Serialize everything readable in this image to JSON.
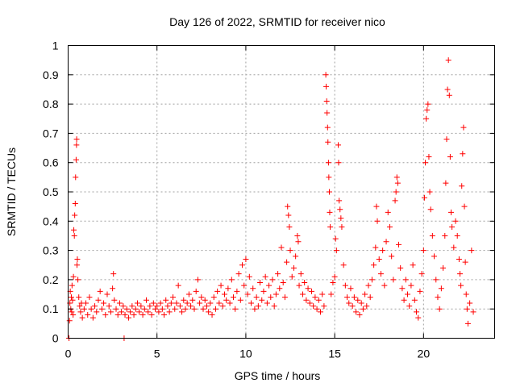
{
  "chart_data": {
    "type": "scatter",
    "title": "Day 126 of 2022, SRMTID for receiver nico",
    "xlabel": "GPS time / hours",
    "ylabel": "SRMTID / TECUs",
    "xlim": [
      0,
      24
    ],
    "ylim": [
      0,
      1
    ],
    "x_ticks": [
      0,
      5,
      10,
      15,
      20
    ],
    "x_tick_labels": [
      "0",
      "5",
      "10",
      "15",
      "20"
    ],
    "y_ticks": [
      0,
      0.1,
      0.2,
      0.3,
      0.4,
      0.5,
      0.6,
      0.7,
      0.8,
      0.9,
      1
    ],
    "y_tick_labels": [
      "0",
      "0.1",
      "0.2",
      "0.3",
      "0.4",
      "0.5",
      "0.6",
      "0.7",
      "0.8",
      "0.9",
      "1"
    ],
    "grid": true,
    "marker": "+",
    "color": "#ff0000",
    "series": [
      {
        "name": "SRMTID",
        "points": [
          [
            0.05,
            0.0
          ],
          [
            0.08,
            0.06
          ],
          [
            0.1,
            0.12
          ],
          [
            0.12,
            0.16
          ],
          [
            0.15,
            0.1
          ],
          [
            0.18,
            0.14
          ],
          [
            0.2,
            0.09
          ],
          [
            0.22,
            0.18
          ],
          [
            0.25,
            0.13
          ],
          [
            0.28,
            0.08
          ],
          [
            0.3,
            0.21
          ],
          [
            0.32,
            0.37
          ],
          [
            0.35,
            0.35
          ],
          [
            0.37,
            0.42
          ],
          [
            0.4,
            0.46
          ],
          [
            0.42,
            0.55
          ],
          [
            0.45,
            0.61
          ],
          [
            0.47,
            0.66
          ],
          [
            0.48,
            0.68
          ],
          [
            0.5,
            0.25
          ],
          [
            0.52,
            0.27
          ],
          [
            0.55,
            0.2
          ],
          [
            0.6,
            0.14
          ],
          [
            0.65,
            0.11
          ],
          [
            0.7,
            0.09
          ],
          [
            0.75,
            0.12
          ],
          [
            0.8,
            0.07
          ],
          [
            0.9,
            0.1
          ],
          [
            1.0,
            0.12
          ],
          [
            1.1,
            0.08
          ],
          [
            1.2,
            0.14
          ],
          [
            1.3,
            0.1
          ],
          [
            1.4,
            0.07
          ],
          [
            1.5,
            0.11
          ],
          [
            1.6,
            0.09
          ],
          [
            1.7,
            0.13
          ],
          [
            1.8,
            0.16
          ],
          [
            1.9,
            0.1
          ],
          [
            2.0,
            0.12
          ],
          [
            2.1,
            0.08
          ],
          [
            2.2,
            0.15
          ],
          [
            2.3,
            0.11
          ],
          [
            2.4,
            0.09
          ],
          [
            2.5,
            0.17
          ],
          [
            2.55,
            0.22
          ],
          [
            2.6,
            0.13
          ],
          [
            2.7,
            0.1
          ],
          [
            2.8,
            0.08
          ],
          [
            2.9,
            0.12
          ],
          [
            3.0,
            0.09
          ],
          [
            3.1,
            0.11
          ],
          [
            3.15,
            0.0
          ],
          [
            3.2,
            0.08
          ],
          [
            3.3,
            0.1
          ],
          [
            3.4,
            0.07
          ],
          [
            3.5,
            0.09
          ],
          [
            3.6,
            0.11
          ],
          [
            3.7,
            0.08
          ],
          [
            3.8,
            0.1
          ],
          [
            3.9,
            0.12
          ],
          [
            4.0,
            0.09
          ],
          [
            4.1,
            0.11
          ],
          [
            4.2,
            0.08
          ],
          [
            4.3,
            0.1
          ],
          [
            4.4,
            0.13
          ],
          [
            4.5,
            0.09
          ],
          [
            4.6,
            0.11
          ],
          [
            4.7,
            0.08
          ],
          [
            4.8,
            0.12
          ],
          [
            4.9,
            0.1
          ],
          [
            5.0,
            0.11
          ],
          [
            5.1,
            0.09
          ],
          [
            5.2,
            0.12
          ],
          [
            5.3,
            0.1
          ],
          [
            5.4,
            0.08
          ],
          [
            5.5,
            0.13
          ],
          [
            5.6,
            0.11
          ],
          [
            5.7,
            0.09
          ],
          [
            5.8,
            0.12
          ],
          [
            5.9,
            0.14
          ],
          [
            6.0,
            0.1
          ],
          [
            6.1,
            0.12
          ],
          [
            6.2,
            0.18
          ],
          [
            6.3,
            0.11
          ],
          [
            6.4,
            0.09
          ],
          [
            6.5,
            0.13
          ],
          [
            6.6,
            0.1
          ],
          [
            6.7,
            0.12
          ],
          [
            6.8,
            0.15
          ],
          [
            6.9,
            0.11
          ],
          [
            7.0,
            0.13
          ],
          [
            7.1,
            0.1
          ],
          [
            7.2,
            0.16
          ],
          [
            7.3,
            0.2
          ],
          [
            7.4,
            0.12
          ],
          [
            7.5,
            0.14
          ],
          [
            7.6,
            0.1
          ],
          [
            7.7,
            0.13
          ],
          [
            7.8,
            0.11
          ],
          [
            7.9,
            0.09
          ],
          [
            8.0,
            0.12
          ],
          [
            8.1,
            0.08
          ],
          [
            8.2,
            0.14
          ],
          [
            8.3,
            0.1
          ],
          [
            8.4,
            0.16
          ],
          [
            8.5,
            0.12
          ],
          [
            8.6,
            0.18
          ],
          [
            8.7,
            0.11
          ],
          [
            8.8,
            0.15
          ],
          [
            8.9,
            0.13
          ],
          [
            9.0,
            0.17
          ],
          [
            9.1,
            0.12
          ],
          [
            9.2,
            0.2
          ],
          [
            9.3,
            0.14
          ],
          [
            9.4,
            0.1
          ],
          [
            9.5,
            0.16
          ],
          [
            9.6,
            0.22
          ],
          [
            9.7,
            0.13
          ],
          [
            9.8,
            0.25
          ],
          [
            9.9,
            0.18
          ],
          [
            10.0,
            0.27
          ],
          [
            10.1,
            0.15
          ],
          [
            10.2,
            0.21
          ],
          [
            10.3,
            0.12
          ],
          [
            10.4,
            0.17
          ],
          [
            10.5,
            0.1
          ],
          [
            10.6,
            0.14
          ],
          [
            10.7,
            0.11
          ],
          [
            10.8,
            0.19
          ],
          [
            10.9,
            0.13
          ],
          [
            11.0,
            0.16
          ],
          [
            11.1,
            0.21
          ],
          [
            11.2,
            0.12
          ],
          [
            11.3,
            0.18
          ],
          [
            11.4,
            0.14
          ],
          [
            11.5,
            0.2
          ],
          [
            11.6,
            0.11
          ],
          [
            11.7,
            0.15
          ],
          [
            11.8,
            0.22
          ],
          [
            11.9,
            0.17
          ],
          [
            12.0,
            0.31
          ],
          [
            12.1,
            0.19
          ],
          [
            12.2,
            0.14
          ],
          [
            12.3,
            0.26
          ],
          [
            12.35,
            0.45
          ],
          [
            12.4,
            0.42
          ],
          [
            12.45,
            0.38
          ],
          [
            12.5,
            0.3
          ],
          [
            12.6,
            0.21
          ],
          [
            12.7,
            0.24
          ],
          [
            12.8,
            0.28
          ],
          [
            12.9,
            0.35
          ],
          [
            12.95,
            0.33
          ],
          [
            13.0,
            0.18
          ],
          [
            13.1,
            0.22
          ],
          [
            13.2,
            0.15
          ],
          [
            13.3,
            0.19
          ],
          [
            13.4,
            0.13
          ],
          [
            13.5,
            0.17
          ],
          [
            13.6,
            0.12
          ],
          [
            13.7,
            0.16
          ],
          [
            13.8,
            0.11
          ],
          [
            13.9,
            0.14
          ],
          [
            14.0,
            0.1
          ],
          [
            14.1,
            0.13
          ],
          [
            14.2,
            0.09
          ],
          [
            14.3,
            0.15
          ],
          [
            14.4,
            0.11
          ],
          [
            14.5,
            0.9
          ],
          [
            14.52,
            0.86
          ],
          [
            14.55,
            0.81
          ],
          [
            14.57,
            0.77
          ],
          [
            14.6,
            0.72
          ],
          [
            14.62,
            0.67
          ],
          [
            14.65,
            0.6
          ],
          [
            14.67,
            0.55
          ],
          [
            14.7,
            0.5
          ],
          [
            14.72,
            0.43
          ],
          [
            14.75,
            0.38
          ],
          [
            14.8,
            0.15
          ],
          [
            14.9,
            0.19
          ],
          [
            15.0,
            0.21
          ],
          [
            15.05,
            0.34
          ],
          [
            15.1,
            0.3
          ],
          [
            15.2,
            0.66
          ],
          [
            15.22,
            0.6
          ],
          [
            15.25,
            0.47
          ],
          [
            15.3,
            0.44
          ],
          [
            15.35,
            0.41
          ],
          [
            15.4,
            0.38
          ],
          [
            15.5,
            0.25
          ],
          [
            15.6,
            0.18
          ],
          [
            15.7,
            0.14
          ],
          [
            15.8,
            0.12
          ],
          [
            15.9,
            0.17
          ],
          [
            16.0,
            0.11
          ],
          [
            16.1,
            0.14
          ],
          [
            16.2,
            0.09
          ],
          [
            16.3,
            0.13
          ],
          [
            16.4,
            0.08
          ],
          [
            16.5,
            0.12
          ],
          [
            16.6,
            0.1
          ],
          [
            16.7,
            0.15
          ],
          [
            16.8,
            0.11
          ],
          [
            16.9,
            0.18
          ],
          [
            17.0,
            0.14
          ],
          [
            17.1,
            0.2
          ],
          [
            17.2,
            0.25
          ],
          [
            17.3,
            0.31
          ],
          [
            17.35,
            0.45
          ],
          [
            17.4,
            0.4
          ],
          [
            17.5,
            0.27
          ],
          [
            17.6,
            0.22
          ],
          [
            17.7,
            0.3
          ],
          [
            17.8,
            0.18
          ],
          [
            17.9,
            0.33
          ],
          [
            18.0,
            0.43
          ],
          [
            18.1,
            0.38
          ],
          [
            18.2,
            0.28
          ],
          [
            18.3,
            0.2
          ],
          [
            18.4,
            0.47
          ],
          [
            18.45,
            0.5
          ],
          [
            18.5,
            0.55
          ],
          [
            18.55,
            0.53
          ],
          [
            18.6,
            0.32
          ],
          [
            18.7,
            0.24
          ],
          [
            18.8,
            0.17
          ],
          [
            18.9,
            0.13
          ],
          [
            19.0,
            0.2
          ],
          [
            19.1,
            0.15
          ],
          [
            19.2,
            0.11
          ],
          [
            19.3,
            0.18
          ],
          [
            19.4,
            0.25
          ],
          [
            19.5,
            0.13
          ],
          [
            19.6,
            0.09
          ],
          [
            19.7,
            0.07
          ],
          [
            19.8,
            0.16
          ],
          [
            19.9,
            0.22
          ],
          [
            20.0,
            0.3
          ],
          [
            20.05,
            0.48
          ],
          [
            20.1,
            0.6
          ],
          [
            20.15,
            0.75
          ],
          [
            20.2,
            0.78
          ],
          [
            20.25,
            0.8
          ],
          [
            20.3,
            0.62
          ],
          [
            20.35,
            0.5
          ],
          [
            20.4,
            0.44
          ],
          [
            20.5,
            0.35
          ],
          [
            20.6,
            0.28
          ],
          [
            20.7,
            0.2
          ],
          [
            20.8,
            0.14
          ],
          [
            20.9,
            0.1
          ],
          [
            21.0,
            0.17
          ],
          [
            21.1,
            0.24
          ],
          [
            21.2,
            0.35
          ],
          [
            21.25,
            0.53
          ],
          [
            21.3,
            0.68
          ],
          [
            21.35,
            0.85
          ],
          [
            21.4,
            0.95
          ],
          [
            21.45,
            0.83
          ],
          [
            21.5,
            0.62
          ],
          [
            21.55,
            0.43
          ],
          [
            21.6,
            0.38
          ],
          [
            21.7,
            0.31
          ],
          [
            21.8,
            0.4
          ],
          [
            21.9,
            0.35
          ],
          [
            22.0,
            0.27
          ],
          [
            22.05,
            0.22
          ],
          [
            22.1,
            0.18
          ],
          [
            22.15,
            0.52
          ],
          [
            22.2,
            0.63
          ],
          [
            22.25,
            0.72
          ],
          [
            22.3,
            0.45
          ],
          [
            22.35,
            0.26
          ],
          [
            22.4,
            0.15
          ],
          [
            22.45,
            0.1
          ],
          [
            22.5,
            0.05
          ],
          [
            22.6,
            0.12
          ],
          [
            22.7,
            0.3
          ],
          [
            22.8,
            0.09
          ]
        ]
      }
    ]
  }
}
